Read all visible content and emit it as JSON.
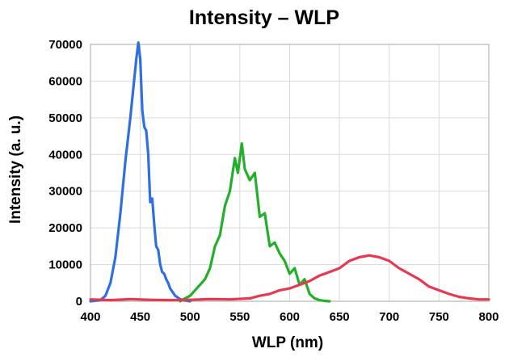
{
  "chart_data": {
    "type": "line",
    "title": "Intensity – WLP",
    "xlabel": "WLP (nm)",
    "ylabel": "Intensity (a. u.)",
    "xlim": [
      400,
      800
    ],
    "ylim": [
      0,
      70000
    ],
    "xticks": [
      400,
      450,
      500,
      550,
      600,
      650,
      700,
      750,
      800
    ],
    "xtick_labels": [
      "400",
      "450",
      "500",
      "550",
      "600",
      "650",
      "700",
      "750",
      "800"
    ],
    "yticks": [
      0,
      10000,
      20000,
      30000,
      40000,
      50000,
      60000,
      70000
    ],
    "ytick_labels": [
      "0",
      "10000",
      "20000",
      "30000",
      "40000",
      "50000",
      "60000",
      "70000"
    ],
    "grid": true,
    "legend": "none",
    "series": [
      {
        "color": "#2f6fe0",
        "x": [
          400,
          410,
          415,
          420,
          425,
          430,
          435,
          440,
          443,
          446,
          448,
          450,
          452,
          454,
          456,
          458,
          460,
          462,
          464,
          466,
          468,
          470,
          472,
          474,
          476,
          478,
          480,
          485,
          490,
          495,
          500
        ],
        "y": [
          0,
          300,
          1500,
          5000,
          12000,
          24000,
          38000,
          50000,
          58000,
          66000,
          70500,
          66000,
          52000,
          47500,
          46500,
          40000,
          27000,
          28000,
          21000,
          15000,
          14000,
          10000,
          8000,
          7500,
          6000,
          5000,
          3500,
          1500,
          600,
          200,
          0
        ]
      },
      {
        "color": "#22b02a",
        "x": [
          490,
          495,
          500,
          505,
          510,
          515,
          520,
          525,
          530,
          535,
          540,
          545,
          548,
          552,
          555,
          560,
          565,
          570,
          575,
          580,
          585,
          590,
          595,
          600,
          605,
          610,
          615,
          620,
          625,
          630,
          635,
          640
        ],
        "y": [
          0,
          800,
          1500,
          3000,
          4500,
          6000,
          9000,
          15000,
          18000,
          26000,
          30000,
          39000,
          35000,
          43000,
          36000,
          33000,
          35000,
          23000,
          24000,
          15000,
          16000,
          13000,
          11000,
          7500,
          9000,
          4500,
          6000,
          2000,
          800,
          300,
          100,
          0
        ]
      },
      {
        "color": "#e8384f",
        "x": [
          400,
          420,
          440,
          460,
          480,
          500,
          520,
          540,
          560,
          570,
          580,
          590,
          600,
          610,
          620,
          630,
          640,
          650,
          660,
          670,
          680,
          690,
          700,
          710,
          720,
          730,
          740,
          750,
          760,
          770,
          780,
          790,
          800
        ],
        "y": [
          500,
          300,
          600,
          400,
          300,
          400,
          600,
          500,
          800,
          1500,
          2000,
          3000,
          3500,
          4500,
          5500,
          7000,
          8000,
          9000,
          11000,
          12000,
          12500,
          12000,
          11000,
          9000,
          7500,
          6000,
          4000,
          3000,
          2000,
          1200,
          800,
          500,
          500
        ]
      }
    ]
  }
}
